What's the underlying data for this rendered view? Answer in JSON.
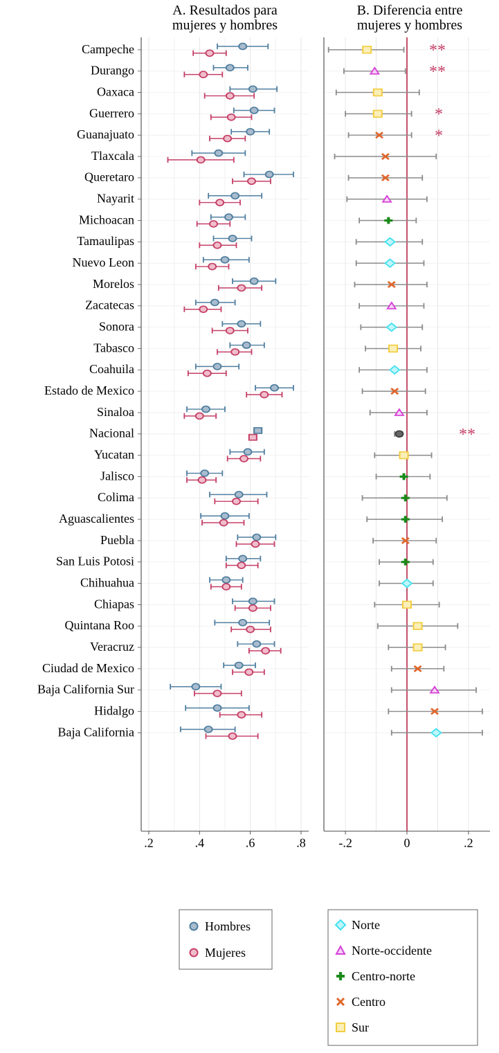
{
  "chart_data": [
    {
      "type": "errorbar-dot",
      "title": "A. Resultados para mujeres y hombres",
      "title_lines": [
        "A. Resultados para",
        "mujeres y hombres"
      ],
      "xlim": [
        0.17,
        0.83
      ],
      "x_ticks": [
        0.2,
        0.4,
        0.6,
        0.8
      ],
      "x_tick_labels": [
        ".2",
        ".4",
        ".6",
        ".8"
      ],
      "grid": true,
      "categories": [
        "Campeche",
        "Durango",
        "Oaxaca",
        "Guerrero",
        "Guanajuato",
        "Tlaxcala",
        "Queretaro",
        "Nayarit",
        "Michoacan",
        "Tamaulipas",
        "Nuevo Leon",
        "Morelos",
        "Zacatecas",
        "Sonora",
        "Tabasco",
        "Coahuila",
        "Estado de Mexico",
        "Sinaloa",
        "Nacional",
        "Yucatan",
        "Jalisco",
        "Colima",
        "Aguascalientes",
        "Puebla",
        "San Luis Potosi",
        "Chihuahua",
        "Chiapas",
        "Quintana Roo",
        "Veracruz",
        "Ciudad de Mexico",
        "Baja California Sur",
        "Hidalgo",
        "Baja California"
      ],
      "series": [
        {
          "name": "Hombres",
          "color": "#4f7ea0",
          "fill": "#a9bccd",
          "values": [
            0.57,
            0.52,
            0.61,
            0.615,
            0.6,
            0.475,
            0.675,
            0.54,
            0.515,
            0.53,
            0.5,
            0.615,
            0.46,
            0.565,
            0.585,
            0.47,
            0.695,
            0.425,
            0.63,
            0.59,
            0.42,
            0.555,
            0.5,
            0.625,
            0.57,
            0.505,
            0.61,
            0.57,
            0.625,
            0.555,
            0.385,
            0.47,
            0.435
          ],
          "lower": [
            0.47,
            0.455,
            0.52,
            0.535,
            0.525,
            0.37,
            0.575,
            0.435,
            0.445,
            0.455,
            0.415,
            0.53,
            0.385,
            0.49,
            0.52,
            0.385,
            0.62,
            0.35,
            0.615,
            0.52,
            0.35,
            0.44,
            0.405,
            0.55,
            0.505,
            0.44,
            0.53,
            0.46,
            0.55,
            0.495,
            0.285,
            0.345,
            0.325
          ],
          "upper": [
            0.67,
            0.59,
            0.705,
            0.695,
            0.675,
            0.58,
            0.77,
            0.645,
            0.58,
            0.605,
            0.595,
            0.7,
            0.54,
            0.64,
            0.655,
            0.555,
            0.77,
            0.5,
            0.645,
            0.655,
            0.49,
            0.665,
            0.595,
            0.7,
            0.64,
            0.57,
            0.695,
            0.675,
            0.695,
            0.62,
            0.485,
            0.595,
            0.54
          ]
        },
        {
          "name": "Mujeres",
          "color": "#c53f66",
          "fill": "#f0bdcc",
          "values": [
            0.44,
            0.415,
            0.52,
            0.525,
            0.51,
            0.405,
            0.605,
            0.48,
            0.455,
            0.47,
            0.45,
            0.565,
            0.415,
            0.52,
            0.54,
            0.43,
            0.655,
            0.4,
            0.61,
            0.575,
            0.41,
            0.545,
            0.495,
            0.62,
            0.565,
            0.505,
            0.61,
            0.6,
            0.66,
            0.595,
            0.47,
            0.565,
            0.53
          ],
          "lower": [
            0.375,
            0.34,
            0.42,
            0.445,
            0.44,
            0.275,
            0.53,
            0.4,
            0.39,
            0.4,
            0.385,
            0.475,
            0.34,
            0.45,
            0.47,
            0.355,
            0.585,
            0.34,
            0.595,
            0.51,
            0.35,
            0.46,
            0.41,
            0.545,
            0.505,
            0.445,
            0.54,
            0.525,
            0.595,
            0.53,
            0.38,
            0.48,
            0.425
          ],
          "upper": [
            0.505,
            0.49,
            0.615,
            0.605,
            0.58,
            0.535,
            0.68,
            0.56,
            0.52,
            0.545,
            0.515,
            0.645,
            0.485,
            0.59,
            0.605,
            0.505,
            0.725,
            0.465,
            0.625,
            0.64,
            0.465,
            0.63,
            0.575,
            0.695,
            0.63,
            0.565,
            0.68,
            0.68,
            0.72,
            0.655,
            0.565,
            0.645,
            0.63
          ]
        }
      ],
      "legend": [
        "Hombres",
        "Mujeres"
      ],
      "legend_position": "bottom"
    },
    {
      "type": "errorbar-dot",
      "title": "B. Diferencia entre mujeres y hombres",
      "title_lines": [
        "B. Diferencia entre",
        "mujeres y hombres"
      ],
      "xlim": [
        -0.27,
        0.27
      ],
      "x_ticks": [
        -0.2,
        0,
        0.2
      ],
      "x_tick_labels": [
        "-.2",
        "0",
        ".2"
      ],
      "reference_line": 0,
      "reference_color": "#b22746",
      "grid": true,
      "values": [
        -0.13,
        -0.105,
        -0.095,
        -0.095,
        -0.09,
        -0.07,
        -0.07,
        -0.065,
        -0.06,
        -0.055,
        -0.055,
        -0.05,
        -0.05,
        -0.05,
        -0.045,
        -0.04,
        -0.04,
        -0.025,
        -0.025,
        -0.01,
        -0.01,
        -0.005,
        -0.005,
        -0.005,
        -0.005,
        0.0,
        0.0,
        0.035,
        0.035,
        0.035,
        0.09,
        0.09,
        0.095
      ],
      "lower": [
        -0.255,
        -0.205,
        -0.23,
        -0.2,
        -0.19,
        -0.235,
        -0.19,
        -0.195,
        -0.155,
        -0.165,
        -0.165,
        -0.17,
        -0.155,
        -0.15,
        -0.135,
        -0.155,
        -0.145,
        -0.12,
        -0.04,
        -0.105,
        -0.1,
        -0.145,
        -0.13,
        -0.11,
        -0.09,
        -0.09,
        -0.105,
        -0.095,
        -0.06,
        -0.05,
        -0.05,
        -0.06,
        -0.05
      ],
      "upper": [
        -0.01,
        -0.005,
        0.04,
        0.015,
        0.015,
        0.095,
        0.05,
        0.065,
        0.03,
        0.05,
        0.055,
        0.065,
        0.055,
        0.05,
        0.045,
        0.065,
        0.06,
        0.065,
        -0.015,
        0.08,
        0.075,
        0.13,
        0.115,
        0.095,
        0.085,
        0.085,
        0.105,
        0.165,
        0.125,
        0.12,
        0.225,
        0.245,
        0.245
      ],
      "region": [
        "Sur",
        "Norte-occidente",
        "Sur",
        "Sur",
        "Centro",
        "Centro",
        "Centro",
        "Norte-occidente",
        "Centro-norte",
        "Norte",
        "Norte",
        "Centro",
        "Norte-occidente",
        "Norte",
        "Sur",
        "Norte",
        "Centro",
        "Norte-occidente",
        "Nacional",
        "Sur",
        "Centro-norte",
        "Centro-norte",
        "Centro-norte",
        "Centro",
        "Centro-norte",
        "Norte",
        "Sur",
        "Sur",
        "Sur",
        "Centro",
        "Norte-occidente",
        "Centro",
        "Norte"
      ],
      "significance": [
        "**",
        "**",
        "",
        "*",
        "*",
        "",
        "",
        "",
        "",
        "",
        "",
        "",
        "",
        "",
        "",
        "",
        "",
        "",
        "**",
        "",
        "",
        "",
        "",
        "",
        "",
        "",
        "",
        "",
        "",
        "",
        "",
        "",
        ""
      ],
      "legend": [
        "Norte",
        "Norte-occidente",
        "Centro-norte",
        "Centro",
        "Sur"
      ],
      "legend_position": "bottom",
      "region_styles": {
        "Norte": {
          "marker": "diamond",
          "color": "#3fe0ef"
        },
        "Norte-occidente": {
          "marker": "triangle",
          "color": "#d63fd8"
        },
        "Centro-norte": {
          "marker": "plus",
          "color": "#1a8a1a"
        },
        "Centro": {
          "marker": "x",
          "color": "#e0662a"
        },
        "Sur": {
          "marker": "square",
          "color": "#f2cd3f"
        },
        "Nacional": {
          "marker": "circle",
          "color": "#3d3d3d"
        }
      },
      "significance_color": "#c53f66"
    }
  ]
}
